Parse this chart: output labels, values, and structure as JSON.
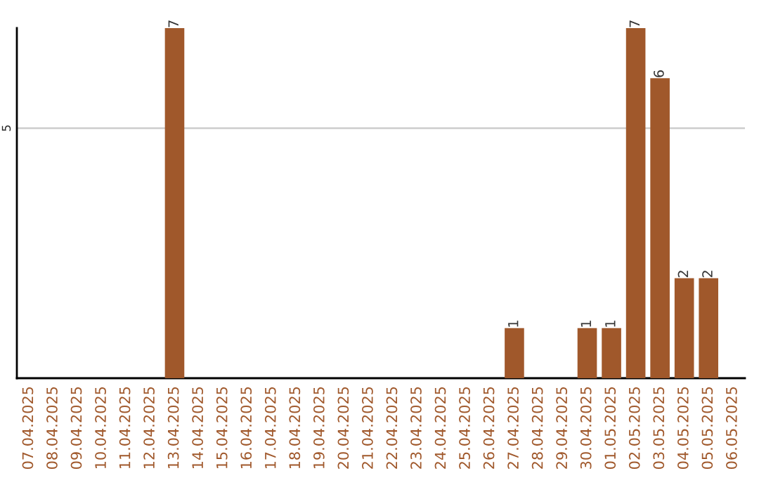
{
  "chart_data": {
    "type": "bar",
    "categories": [
      "07.04.2025",
      "08.04.2025",
      "09.04.2025",
      "10.04.2025",
      "11.04.2025",
      "12.04.2025",
      "13.04.2025",
      "14.04.2025",
      "15.04.2025",
      "16.04.2025",
      "17.04.2025",
      "18.04.2025",
      "19.04.2025",
      "20.04.2025",
      "21.04.2025",
      "22.04.2025",
      "23.04.2025",
      "24.04.2025",
      "25.04.2025",
      "26.04.2025",
      "27.04.2025",
      "28.04.2025",
      "29.04.2025",
      "30.04.2025",
      "01.05.2025",
      "02.05.2025",
      "03.05.2025",
      "04.05.2025",
      "05.05.2025",
      "06.05.2025"
    ],
    "values": [
      0,
      0,
      0,
      0,
      0,
      0,
      7,
      0,
      0,
      0,
      0,
      0,
      0,
      0,
      0,
      0,
      0,
      0,
      0,
      0,
      1,
      0,
      0,
      1,
      1,
      7,
      6,
      2,
      2,
      0
    ],
    "value_labels": [
      null,
      null,
      null,
      null,
      null,
      null,
      "7",
      null,
      null,
      null,
      null,
      null,
      null,
      null,
      null,
      null,
      null,
      null,
      null,
      null,
      "1",
      null,
      null,
      "1",
      "1",
      "7",
      "6",
      "2",
      "2",
      null
    ],
    "color": "#a0582b",
    "ylim": [
      0,
      7
    ],
    "yticks": [
      {
        "value": 0,
        "label": null
      },
      5
    ],
    "grid": "y"
  }
}
